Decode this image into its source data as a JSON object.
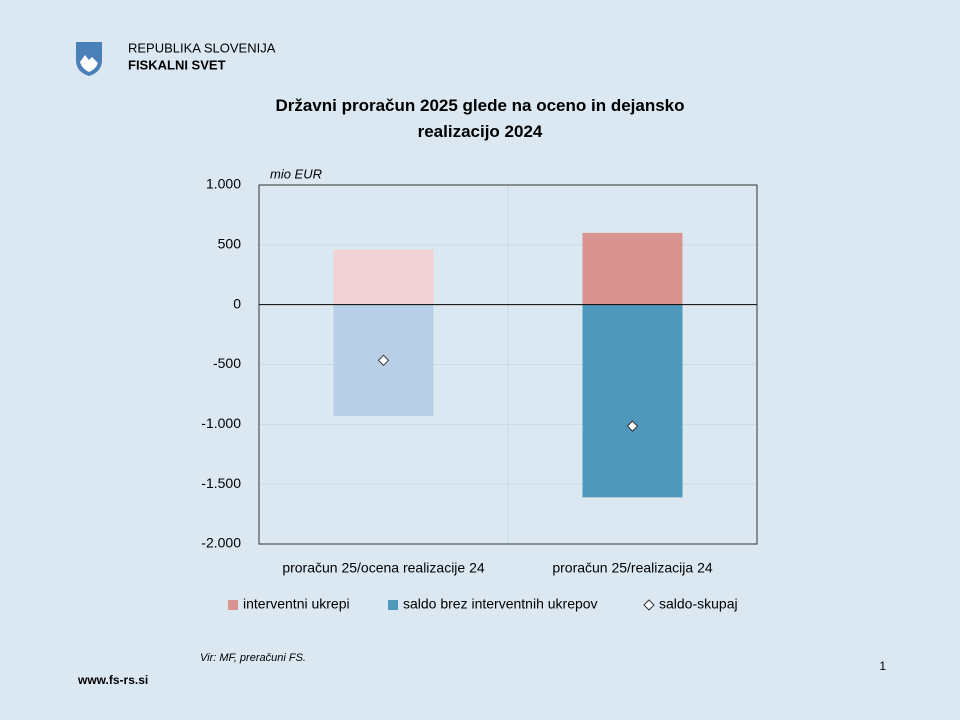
{
  "header": {
    "line1": "REPUBLIKA SLOVENIJA",
    "line2": "FISKALNI SVET"
  },
  "chart_data": {
    "type": "bar",
    "stacked": true,
    "title": "Državni proračun 2025 glede na oceno in dejansko realizacijo 2024",
    "unit_label": "mio EUR",
    "categories": [
      "proračun 25/ocena realizacije 24",
      "proračun 25/realizacija 24"
    ],
    "series": [
      {
        "name": "interventni ukrepi",
        "color": "#d99490",
        "colors": [
          "#f0d2d4",
          "#d99490"
        ],
        "values": [
          460,
          600
        ]
      },
      {
        "name": "saldo brez interventnih ukrepov",
        "color": "#4f98bb",
        "colors": [
          "#b8cfe7",
          "#4f98bb"
        ],
        "values": [
          -930,
          -1610
        ]
      },
      {
        "name": "saldo-skupaj",
        "type": "marker",
        "color": "#ffffff",
        "values": [
          -465,
          -1015
        ]
      }
    ],
    "ylim": [
      -2000,
      1000
    ],
    "yticks": [
      {
        "value": -2000,
        "label": "-2.000"
      },
      {
        "value": -1500,
        "label": "-1.500"
      },
      {
        "value": -1000,
        "label": "-1.000"
      },
      -500,
      0,
      500,
      {
        "value": 1000,
        "label": "1.000"
      }
    ],
    "grid": true,
    "legend": "bottom"
  },
  "footer": {
    "source": "Vir: MF, preračuni FS.",
    "url": "www.fs-rs.si",
    "page": "1"
  }
}
